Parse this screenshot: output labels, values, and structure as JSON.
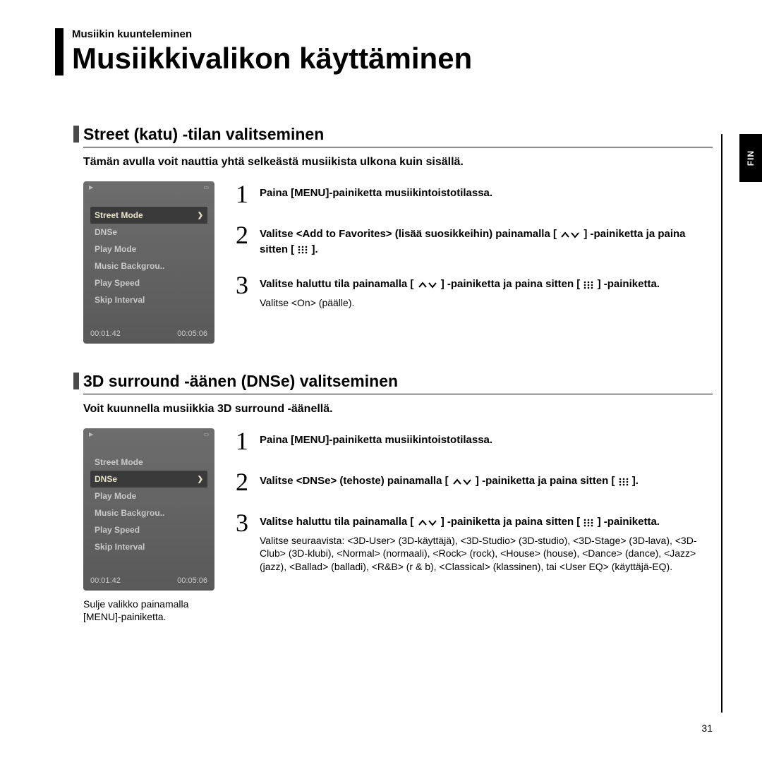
{
  "breadcrumb": "Musiikin kuunteleminen",
  "main_title": "Musiikkivalikon käyttäminen",
  "side_tab": "FIN",
  "page_number": "31",
  "device_menu_items": [
    "Street Mode",
    "DNSe",
    "Play Mode",
    "Music Backgrou..",
    "Play Speed",
    "Skip Interval"
  ],
  "device_time_elapsed": "00:01:42",
  "device_time_total": "00:05:06",
  "section1": {
    "heading": "Street (katu) -tilan valitseminen",
    "intro": "Tämän avulla voit nauttia yhtä selkeästä musiikista ulkona kuin sisällä.",
    "selected_index": 0,
    "steps": [
      {
        "num": "1",
        "text_pre": "Paina [MENU]-painiketta musiikintoistotilassa."
      },
      {
        "num": "2",
        "text_pre": "Valitse <Add to Favorites> (lisää suosikkeihin) painamalla [",
        "text_mid": "] -painiketta ja paina sitten [",
        "text_post": "]."
      },
      {
        "num": "3",
        "text_pre": "Valitse haluttu tila painamalla [",
        "text_mid": "] -painiketta ja paina sitten [",
        "text_post": "] -painiketta.",
        "note": "Valitse <On> (päälle)."
      }
    ]
  },
  "section2": {
    "heading": "3D surround -äänen (DNSe) valitseminen",
    "intro": "Voit kuunnella musiikkia 3D surround -äänellä.",
    "selected_index": 1,
    "caption": "Sulje valikko painamalla [MENU]-painiketta.",
    "steps": [
      {
        "num": "1",
        "text_pre": "Paina [MENU]-painiketta musiikintoistotilassa."
      },
      {
        "num": "2",
        "text_pre": "Valitse <DNSe> (tehoste) painamalla [",
        "text_mid": "] -painiketta ja paina sitten [",
        "text_post": "]."
      },
      {
        "num": "3",
        "text_pre": "Valitse haluttu tila painamalla [",
        "text_mid": "] -painiketta ja paina sitten [",
        "text_post": "] -painiketta.",
        "note": "Valitse seuraavista: <3D-User> (3D-käyttäjä), <3D-Studio> (3D-studio), <3D-Stage> (3D-lava), <3D-Club> (3D-klubi), <Normal> (normaali), <Rock> (rock), <House> (house), <Dance> (dance), <Jazz> (jazz), <Ballad> (balladi), <R&B> (r & b), <Classical> (klassinen), tai <User EQ> (käyttäjä-EQ)."
      }
    ]
  }
}
